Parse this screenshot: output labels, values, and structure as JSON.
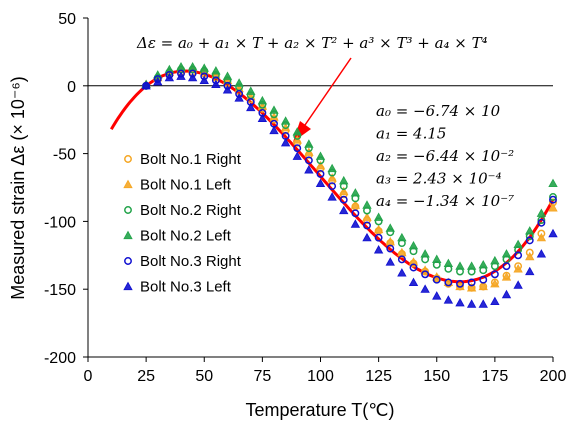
{
  "chart_data": {
    "type": "scatter",
    "xlabel": "Temperature T(℃)",
    "ylabel": "Measured strain Δε (× 10⁻⁶)",
    "xlim": [
      0,
      200
    ],
    "ylim": [
      -200,
      50
    ],
    "xticks": [
      "0",
      "25",
      "50",
      "75",
      "100",
      "125",
      "150",
      "175",
      "200"
    ],
    "yticks": [
      "50",
      "0",
      "-50",
      "-100",
      "-150",
      "-200"
    ],
    "grid": false,
    "legend_position": "left",
    "equation": "Δε = a₀ + a₁ × T + a₂ × T² + a³ × T³ + a₄ × T⁴",
    "coefficients": [
      "a₀ = −6.74 × 10",
      "a₁ = 4.15",
      "a₂ = −6.44 × 10⁻²",
      "a₃ = 2.43 × 10⁻⁴",
      "a₄ = −1.34 × 10⁻⁷"
    ],
    "fit_curve": {
      "color": "#ff0000",
      "x_range": [
        10,
        200
      ]
    },
    "series": [
      {
        "name": "Bolt No.1 Right",
        "marker": "circle",
        "color": "#f5a623",
        "x": [
          25,
          30,
          35,
          40,
          45,
          50,
          55,
          60,
          65,
          70,
          75,
          80,
          85,
          90,
          95,
          100,
          105,
          110,
          115,
          120,
          125,
          130,
          135,
          140,
          145,
          150,
          155,
          160,
          165,
          170,
          175,
          180,
          185,
          190,
          195,
          200
        ],
        "y": [
          0,
          5,
          8,
          10,
          10,
          9,
          6,
          2,
          -4,
          -10,
          -17,
          -25,
          -33,
          -42,
          -51,
          -61,
          -70,
          -80,
          -89,
          -99,
          -107,
          -116,
          -124,
          -131,
          -137,
          -142,
          -146,
          -148,
          -149,
          -148,
          -145,
          -140,
          -133,
          -123,
          -109,
          -86
        ]
      },
      {
        "name": "Bolt No.1 Left",
        "marker": "triangle",
        "color": "#f5a623",
        "x": [
          25,
          30,
          35,
          40,
          45,
          50,
          55,
          60,
          65,
          70,
          75,
          80,
          85,
          90,
          95,
          100,
          105,
          110,
          115,
          120,
          125,
          130,
          135,
          140,
          145,
          150,
          155,
          160,
          165,
          170,
          175,
          180,
          185,
          190,
          195,
          200
        ],
        "y": [
          1,
          6,
          10,
          12,
          12,
          11,
          8,
          4,
          -2,
          -8,
          -15,
          -23,
          -31,
          -40,
          -49,
          -59,
          -68,
          -78,
          -88,
          -97,
          -106,
          -115,
          -123,
          -130,
          -136,
          -141,
          -145,
          -148,
          -149,
          -148,
          -146,
          -141,
          -135,
          -126,
          -112,
          -90
        ]
      },
      {
        "name": "Bolt No.2 Right",
        "marker": "circle",
        "color": "#22a34a",
        "x": [
          25,
          30,
          35,
          40,
          45,
          50,
          55,
          60,
          65,
          70,
          75,
          80,
          85,
          90,
          95,
          100,
          105,
          110,
          115,
          120,
          125,
          130,
          135,
          140,
          145,
          150,
          155,
          160,
          165,
          170,
          175,
          180,
          185,
          190,
          195,
          200
        ],
        "y": [
          0,
          6,
          10,
          12,
          12,
          11,
          8,
          4,
          -1,
          -7,
          -14,
          -21,
          -29,
          -37,
          -46,
          -55,
          -64,
          -74,
          -83,
          -92,
          -100,
          -108,
          -116,
          -122,
          -128,
          -132,
          -135,
          -137,
          -137,
          -136,
          -133,
          -128,
          -121,
          -111,
          -99,
          -82
        ]
      },
      {
        "name": "Bolt No.2 Left",
        "marker": "triangle",
        "color": "#22a34a",
        "x": [
          25,
          30,
          35,
          40,
          45,
          50,
          55,
          60,
          65,
          70,
          75,
          80,
          85,
          90,
          95,
          100,
          105,
          110,
          115,
          120,
          125,
          130,
          135,
          140,
          145,
          150,
          155,
          160,
          165,
          170,
          175,
          180,
          185,
          190,
          195,
          200
        ],
        "y": [
          1,
          8,
          12,
          14,
          14,
          13,
          11,
          7,
          2,
          -4,
          -11,
          -18,
          -26,
          -34,
          -43,
          -52,
          -61,
          -70,
          -79,
          -88,
          -97,
          -105,
          -112,
          -118,
          -124,
          -128,
          -131,
          -133,
          -133,
          -132,
          -129,
          -124,
          -117,
          -107,
          -94,
          -72
        ]
      },
      {
        "name": "Bolt No.3 Right",
        "marker": "circle",
        "color": "#1010d0",
        "x": [
          25,
          30,
          35,
          40,
          45,
          50,
          55,
          60,
          65,
          70,
          75,
          80,
          85,
          90,
          95,
          100,
          105,
          110,
          115,
          120,
          125,
          130,
          135,
          140,
          145,
          150,
          155,
          160,
          165,
          170,
          175,
          180,
          185,
          190,
          195,
          200
        ],
        "y": [
          0,
          5,
          8,
          9,
          9,
          7,
          4,
          0,
          -6,
          -12,
          -20,
          -28,
          -37,
          -46,
          -55,
          -65,
          -74,
          -84,
          -94,
          -103,
          -112,
          -120,
          -128,
          -134,
          -139,
          -143,
          -145,
          -146,
          -145,
          -143,
          -139,
          -133,
          -125,
          -114,
          -101,
          -84
        ]
      },
      {
        "name": "Bolt No.3 Left",
        "marker": "triangle",
        "color": "#1010d0",
        "x": [
          25,
          30,
          35,
          40,
          45,
          50,
          55,
          60,
          65,
          70,
          75,
          80,
          85,
          90,
          95,
          100,
          105,
          110,
          115,
          120,
          125,
          130,
          135,
          140,
          145,
          150,
          155,
          160,
          165,
          170,
          175,
          180,
          185,
          190,
          195,
          200
        ],
        "y": [
          0,
          3,
          6,
          7,
          6,
          4,
          1,
          -3,
          -9,
          -16,
          -24,
          -33,
          -42,
          -52,
          -62,
          -72,
          -82,
          -92,
          -102,
          -112,
          -121,
          -130,
          -138,
          -145,
          -150,
          -155,
          -158,
          -160,
          -161,
          -161,
          -159,
          -154,
          -147,
          -137,
          -124,
          -109
        ]
      }
    ]
  }
}
